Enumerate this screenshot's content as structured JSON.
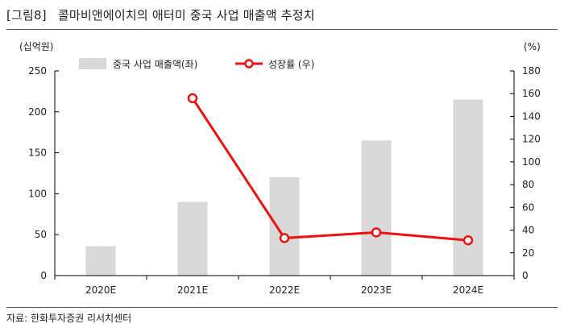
{
  "header": {
    "figure_label": "[그림8]",
    "title": "콜마비앤에이치의 애터미 중국 사업 매출액 추정치"
  },
  "source": "자료: 한화투자증권 리서치센터",
  "chart_data": {
    "type": "bar",
    "categories": [
      "2020E",
      "2021E",
      "2022E",
      "2023E",
      "2024E"
    ],
    "series": [
      {
        "name": "중국 사업 매출액(좌)",
        "type": "bar",
        "axis": "left",
        "values": [
          36,
          90,
          120,
          165,
          215
        ],
        "color": "#d9d9d9"
      },
      {
        "name": "성장률 (우)",
        "type": "line",
        "axis": "right",
        "values": [
          null,
          156,
          33,
          38,
          31
        ],
        "color": "#ee1111"
      }
    ],
    "y_left": {
      "unit": "(십억원)",
      "ylim": [
        0,
        250
      ],
      "ticks": [
        0,
        50,
        100,
        150,
        200,
        250
      ]
    },
    "y_right": {
      "unit": "(%)",
      "ylim": [
        0,
        180
      ],
      "ticks": [
        0,
        20,
        40,
        60,
        80,
        100,
        120,
        140,
        160,
        180
      ]
    },
    "legend_placement": "top-center",
    "grid": false
  }
}
